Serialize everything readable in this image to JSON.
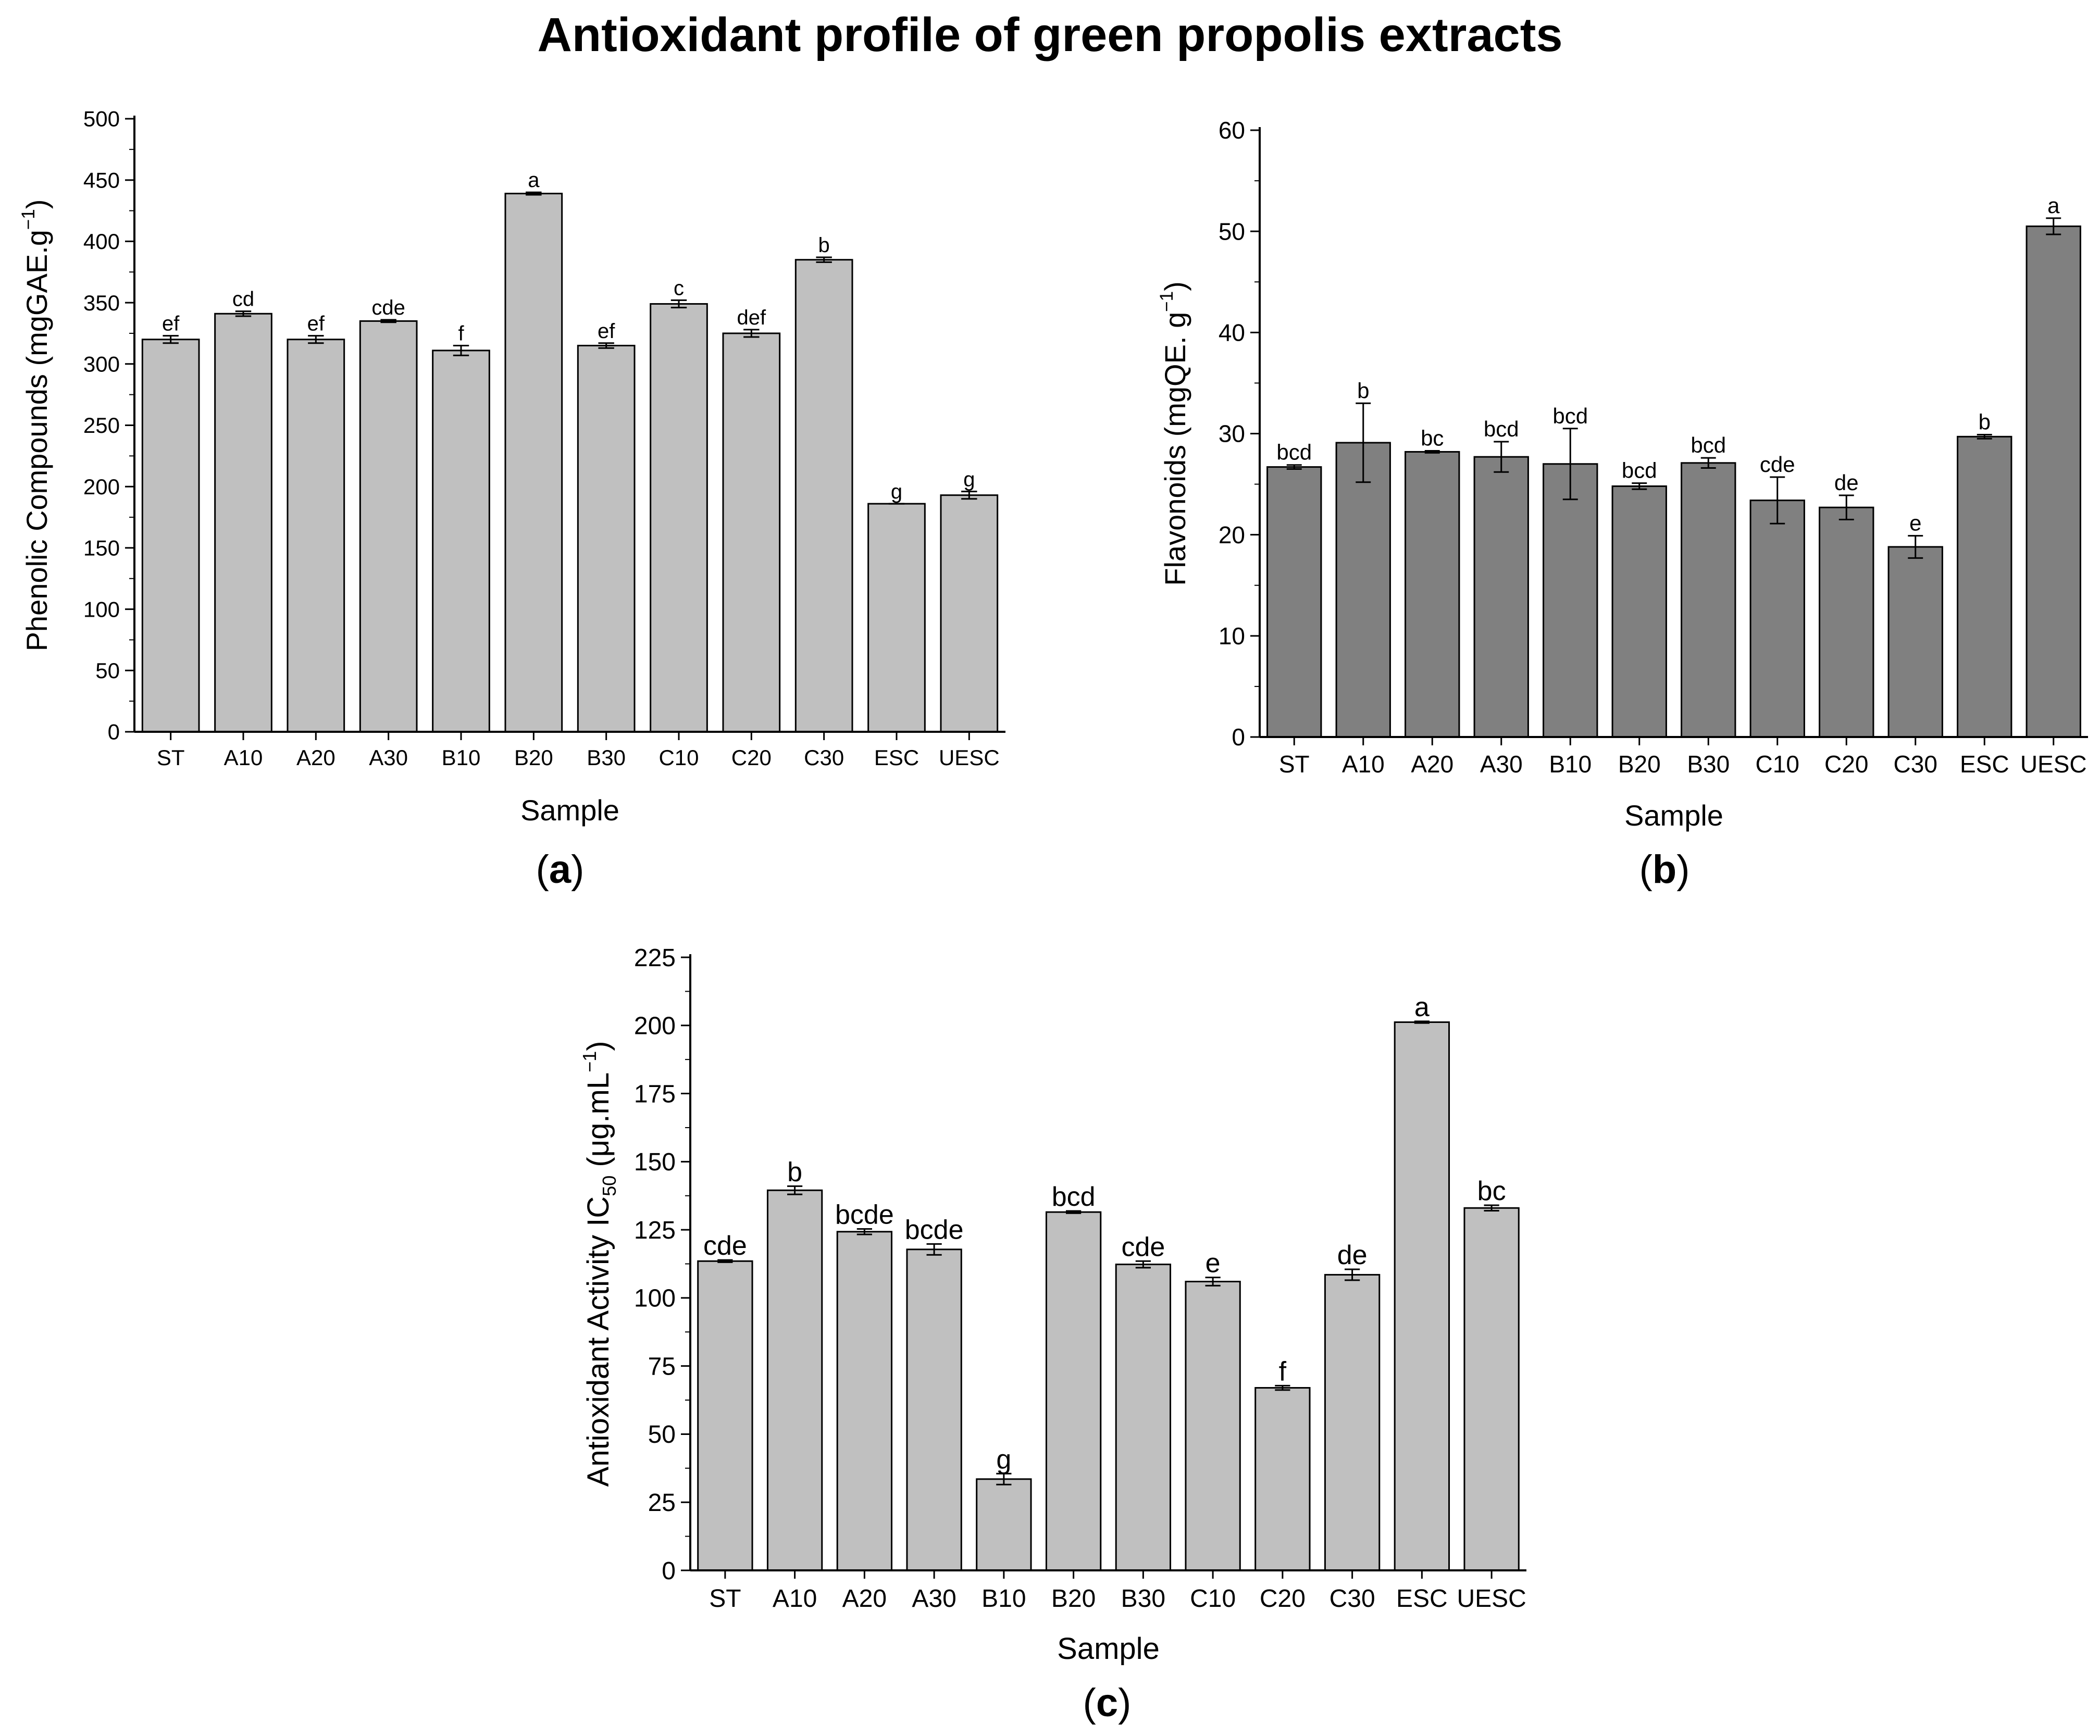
{
  "figure": {
    "title": "Antioxidant profile of green propolis extracts"
  },
  "panels": [
    {
      "label_letter": "a",
      "label_open": "(",
      "label_close": ")"
    },
    {
      "label_letter": "b",
      "label_open": "(",
      "label_close": ")"
    },
    {
      "label_letter": "c",
      "label_open": "(",
      "label_close": ")"
    }
  ],
  "chart_data": [
    {
      "type": "bar",
      "panel": "a",
      "title": "",
      "xlabel": "Sample",
      "ylabel": "Phenolic Compounds (mgGAE.g",
      "ylabel_sup": "−1",
      "ylabel_close": ")",
      "ylim": [
        0,
        500
      ],
      "yticks": [
        0,
        50,
        100,
        150,
        200,
        250,
        300,
        350,
        400,
        450,
        500
      ],
      "categories": [
        "ST",
        "A10",
        "A20",
        "A30",
        "B10",
        "B20",
        "B30",
        "C10",
        "C20",
        "C30",
        "ESC",
        "UESC"
      ],
      "values": [
        320,
        341,
        320,
        335,
        311,
        439,
        315,
        349,
        325,
        385,
        186,
        193
      ],
      "errors": [
        3,
        2,
        3,
        1,
        4,
        1,
        2,
        3,
        3,
        2,
        0,
        3
      ],
      "significance_letters": [
        "ef",
        "cd",
        "ef",
        "cde",
        "f",
        "a",
        "ef",
        "c",
        "def",
        "b",
        "g",
        "g"
      ],
      "bar_color": "#c0c0c0",
      "grid": false
    },
    {
      "type": "bar",
      "panel": "b",
      "title": "",
      "xlabel": "Sample",
      "ylabel": "Flavonoids (mgQE. g",
      "ylabel_sup": "−1",
      "ylabel_close": ")",
      "ylim": [
        0,
        60
      ],
      "yticks": [
        0,
        10,
        20,
        30,
        40,
        50,
        60
      ],
      "categories": [
        "ST",
        "A10",
        "A20",
        "A30",
        "B10",
        "B20",
        "B30",
        "C10",
        "C20",
        "C30",
        "ESC",
        "UESC"
      ],
      "values": [
        26.7,
        29.1,
        28.2,
        27.7,
        27.0,
        24.8,
        27.1,
        23.4,
        22.7,
        18.8,
        29.7,
        50.5
      ],
      "errors": [
        0.2,
        3.9,
        0.1,
        1.5,
        3.5,
        0.3,
        0.5,
        2.3,
        1.2,
        1.1,
        0.2,
        0.8
      ],
      "significance_letters": [
        "bcd",
        "b",
        "bc",
        "bcd",
        "bcd",
        "bcd",
        "bcd",
        "cde",
        "de",
        "e",
        "b",
        "a"
      ],
      "bar_color": "#808080",
      "grid": false
    },
    {
      "type": "bar",
      "panel": "c",
      "title": "",
      "xlabel": "Sample",
      "ylabel": "Antioxidant Activity IC",
      "ylabel_sub": "50",
      "ylabel_rest": " (μg.mL",
      "ylabel_sup": "−1",
      "ylabel_close": ")",
      "ylim": [
        0,
        225
      ],
      "yticks": [
        0,
        25,
        50,
        75,
        100,
        125,
        150,
        175,
        200,
        225
      ],
      "categories": [
        "ST",
        "A10",
        "A20",
        "A30",
        "B10",
        "B20",
        "B30",
        "C10",
        "C20",
        "C30",
        "ESC",
        "UESC"
      ],
      "values": [
        113.5,
        139.5,
        124.3,
        117.8,
        33.5,
        131.5,
        112.3,
        106.0,
        67.0,
        108.5,
        201.2,
        133.0
      ],
      "errors": [
        0.4,
        1.5,
        1.0,
        2.0,
        2.0,
        0.4,
        1.2,
        1.5,
        0.8,
        2.0,
        0.3,
        1.0
      ],
      "significance_letters": [
        "cde",
        "b",
        "bcde",
        "bcde",
        "g",
        "bcd",
        "cde",
        "e",
        "f",
        "de",
        "a",
        "bc"
      ],
      "bar_color": "#c0c0c0",
      "grid": false
    }
  ]
}
